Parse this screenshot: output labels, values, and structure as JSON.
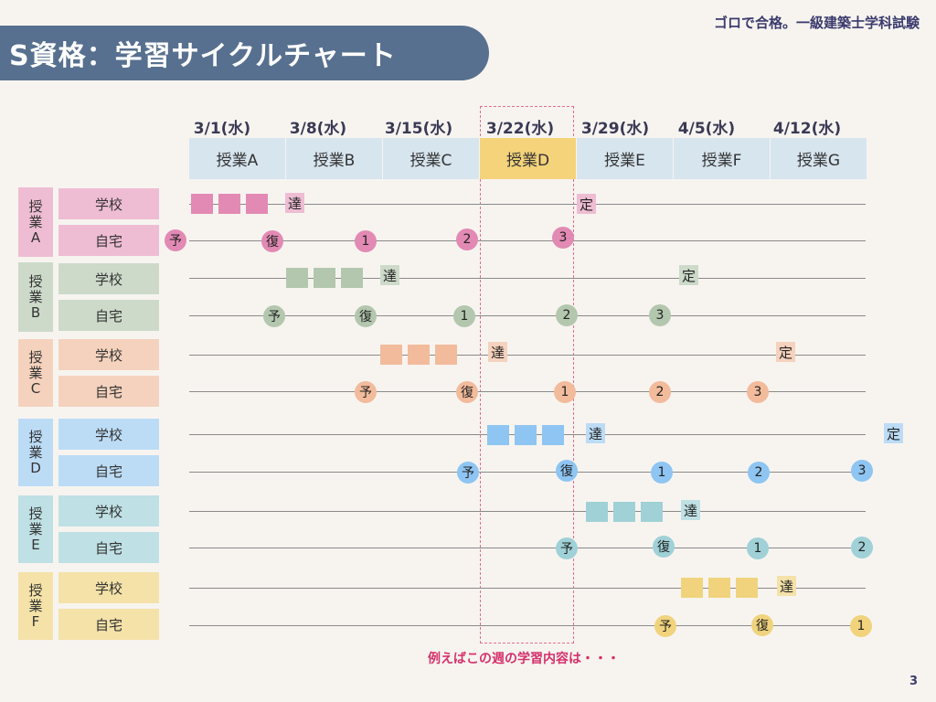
{
  "title": "S資格：学習サイクルチャート",
  "brand": "ゴロで合格。一級建築士学科試験",
  "page_number": "3",
  "note": "例えばこの週の学習内容は・・・",
  "dates": [
    "3/1(水)",
    "3/8(水)",
    "3/15(水)",
    "3/22(水)",
    "3/29(水)",
    "4/5(水)",
    "4/12(水)"
  ],
  "lessons": [
    "授業A",
    "授業B",
    "授業C",
    "授業D",
    "授業E",
    "授業F",
    "授業G"
  ],
  "row_labels": {
    "school": "学校",
    "home": "自宅"
  },
  "marks": {
    "achieve": "達",
    "fix": "定",
    "preview": "予",
    "review": "復",
    "r1": "1",
    "r2": "2",
    "r3": "3"
  },
  "groups": [
    {
      "label": "授業A",
      "fill": "#e6a5c3",
      "label_bg": "#eebdd3",
      "mark": "#e28ab4"
    },
    {
      "label": "授業B",
      "fill": "#b6c9b2",
      "label_bg": "#cddaca",
      "mark": "#b3c7ae"
    },
    {
      "label": "授業C",
      "fill": "#f2bd9e",
      "label_bg": "#f5d2bd",
      "mark": "#f2bb9b"
    },
    {
      "label": "授業D",
      "fill": "#99ccf5",
      "label_bg": "#bcdcf6",
      "mark": "#8ec5f2"
    },
    {
      "label": "授業E",
      "fill": "#9fd1d7",
      "label_bg": "#bfe0e4",
      "mark": "#9fd1d7"
    },
    {
      "label": "授業F",
      "fill": "#f1d787",
      "label_bg": "#f4e2a8",
      "mark": "#f0d37c"
    }
  ],
  "colors": {
    "title_band": "#57708f",
    "lesson_header": "#d7e5ef",
    "lesson_highlight": "#f4d37a",
    "note": "#d5306b"
  }
}
